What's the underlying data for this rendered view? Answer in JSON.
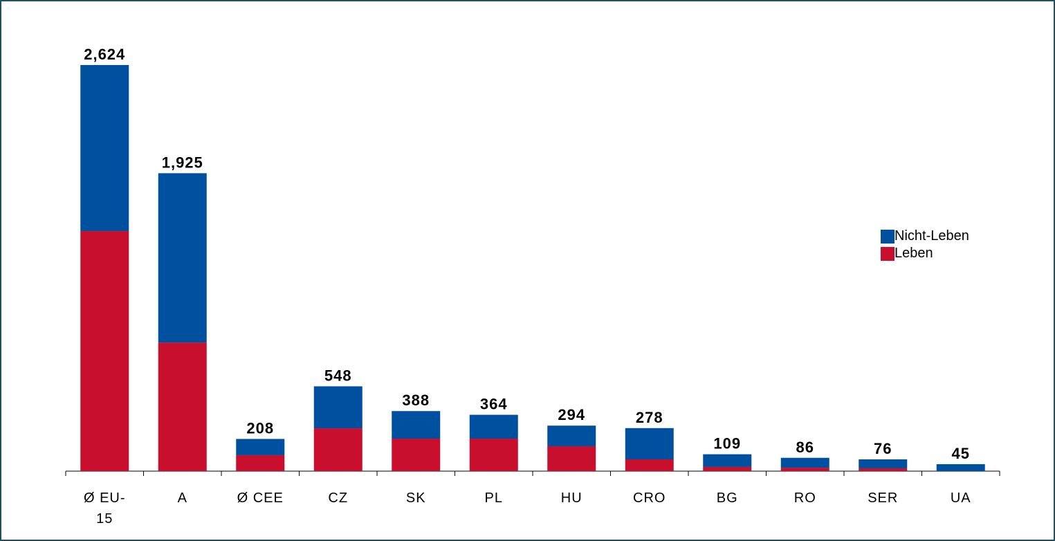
{
  "chart_data": {
    "type": "stacked_bar",
    "categories": [
      "Ø EU-15",
      "A",
      "Ø CEE",
      "CZ",
      "SK",
      "PL",
      "HU",
      "CRO",
      "BG",
      "RO",
      "SER",
      "UA"
    ],
    "series": [
      {
        "name": "Leben",
        "color": "#c8102e",
        "values": [
          1551,
          831,
          103,
          277,
          210,
          210,
          161,
          76,
          27,
          22,
          18,
          0
        ]
      },
      {
        "name": "Nicht-Leben",
        "color": "#0050a0",
        "values": [
          1073,
          1094,
          105,
          271,
          178,
          154,
          133,
          202,
          82,
          64,
          58,
          45
        ]
      }
    ],
    "totals": [
      2624,
      1925,
      208,
      548,
      388,
      364,
      294,
      278,
      109,
      86,
      76,
      45
    ],
    "total_labels": [
      "2,624",
      "1,925",
      "208",
      "548",
      "388",
      "364",
      "294",
      "278",
      "109",
      "86",
      "76",
      "45"
    ],
    "legend": "right"
  }
}
